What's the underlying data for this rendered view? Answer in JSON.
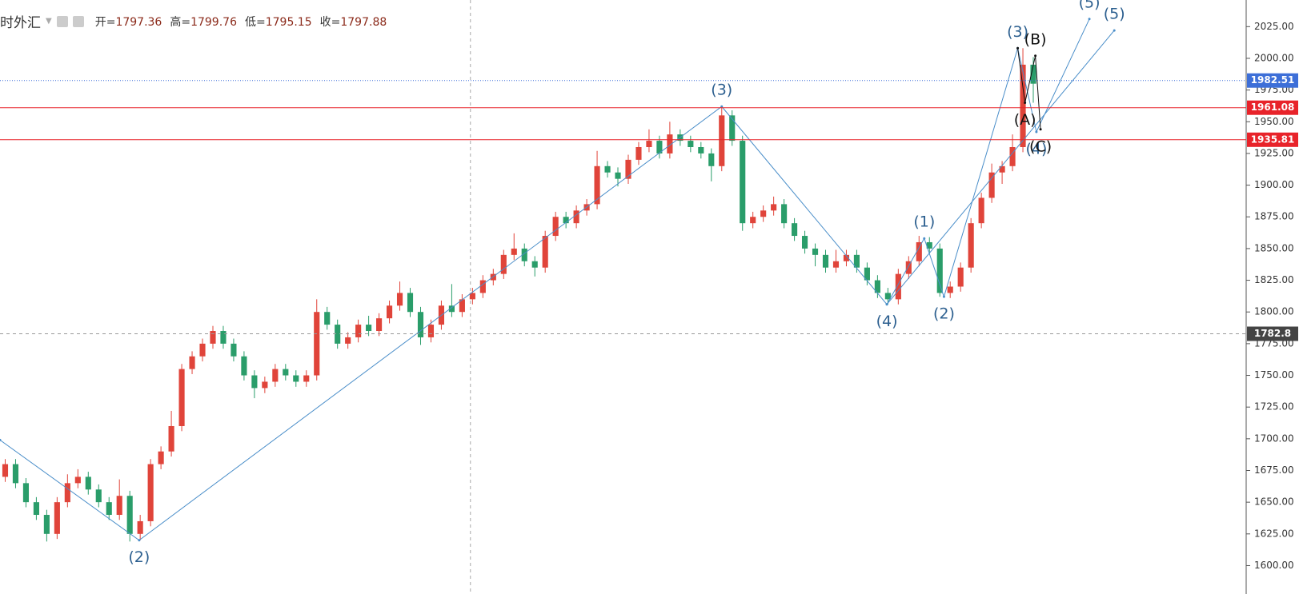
{
  "header": {
    "symbol": "时外汇",
    "items": [
      {
        "label": "开=",
        "value": "1797.36"
      },
      {
        "label": "高=",
        "value": "1799.76"
      },
      {
        "label": "低=",
        "value": "1795.15"
      },
      {
        "label": "收=",
        "value": "1797.88"
      }
    ]
  },
  "chart_data": {
    "type": "candlestick",
    "up_color": "#e0443a",
    "down_color": "#2a9d6a",
    "xlim": [
      0,
      120
    ],
    "ylim": [
      1577.6,
      2046.0
    ],
    "yticks": [
      {
        "value": 1600,
        "label": "1600.00"
      },
      {
        "value": 1625,
        "label": "1625.00"
      },
      {
        "value": 1650,
        "label": "1650.00"
      },
      {
        "value": 1675,
        "label": "1675.00"
      },
      {
        "value": 1700,
        "label": "1700.00"
      },
      {
        "value": 1725,
        "label": "1725.00"
      },
      {
        "value": 1750,
        "label": "1750.00"
      },
      {
        "value": 1775,
        "label": "1775.00"
      },
      {
        "value": 1800,
        "label": "1800.00"
      },
      {
        "value": 1825,
        "label": "1825.00"
      },
      {
        "value": 1850,
        "label": "1850.00"
      },
      {
        "value": 1875,
        "label": "1875.00"
      },
      {
        "value": 1900,
        "label": "1900.00"
      },
      {
        "value": 1925,
        "label": "1925.00"
      },
      {
        "value": 1950,
        "label": "1950.00"
      },
      {
        "value": 1975,
        "label": "1975.00"
      },
      {
        "value": 2000,
        "label": "2000.00"
      },
      {
        "value": 2025,
        "label": "2025.00"
      }
    ],
    "candles": [
      [
        1670,
        1684,
        1666,
        1680
      ],
      [
        1680,
        1684,
        1661,
        1665
      ],
      [
        1665,
        1669,
        1646,
        1650
      ],
      [
        1650,
        1654,
        1636,
        1640
      ],
      [
        1640,
        1644,
        1619,
        1625
      ],
      [
        1625,
        1654,
        1621,
        1650
      ],
      [
        1650,
        1672,
        1646,
        1665
      ],
      [
        1665,
        1676,
        1661,
        1670
      ],
      [
        1670,
        1674,
        1656,
        1660
      ],
      [
        1660,
        1664,
        1646,
        1650
      ],
      [
        1650,
        1654,
        1636,
        1640
      ],
      [
        1640,
        1668,
        1636,
        1655
      ],
      [
        1655,
        1659,
        1619,
        1625
      ],
      [
        1625,
        1640,
        1620,
        1635
      ],
      [
        1635,
        1684,
        1631,
        1680
      ],
      [
        1680,
        1694,
        1676,
        1690
      ],
      [
        1690,
        1722,
        1686,
        1710
      ],
      [
        1710,
        1759,
        1706,
        1755
      ],
      [
        1755,
        1769,
        1751,
        1765
      ],
      [
        1765,
        1779,
        1761,
        1775
      ],
      [
        1775,
        1789,
        1771,
        1785
      ],
      [
        1785,
        1789,
        1771,
        1775
      ],
      [
        1775,
        1779,
        1761,
        1765
      ],
      [
        1765,
        1769,
        1746,
        1750
      ],
      [
        1750,
        1754,
        1732,
        1740
      ],
      [
        1740,
        1749,
        1736,
        1745
      ],
      [
        1745,
        1759,
        1741,
        1755
      ],
      [
        1755,
        1759,
        1746,
        1750
      ],
      [
        1750,
        1754,
        1741,
        1745
      ],
      [
        1745,
        1754,
        1741,
        1750
      ],
      [
        1750,
        1810,
        1746,
        1800
      ],
      [
        1800,
        1804,
        1786,
        1790
      ],
      [
        1790,
        1794,
        1771,
        1775
      ],
      [
        1775,
        1784,
        1771,
        1780
      ],
      [
        1780,
        1794,
        1776,
        1790
      ],
      [
        1790,
        1797,
        1781,
        1785
      ],
      [
        1785,
        1799,
        1781,
        1795
      ],
      [
        1795,
        1809,
        1791,
        1805
      ],
      [
        1805,
        1824,
        1801,
        1815
      ],
      [
        1815,
        1819,
        1796,
        1800
      ],
      [
        1800,
        1804,
        1774,
        1780
      ],
      [
        1780,
        1794,
        1776,
        1790
      ],
      [
        1790,
        1809,
        1786,
        1805
      ],
      [
        1805,
        1822,
        1796,
        1800
      ],
      [
        1800,
        1814,
        1796,
        1810
      ],
      [
        1810,
        1819,
        1806,
        1815
      ],
      [
        1815,
        1829,
        1811,
        1825
      ],
      [
        1825,
        1834,
        1821,
        1830
      ],
      [
        1830,
        1849,
        1826,
        1845
      ],
      [
        1845,
        1862,
        1841,
        1850
      ],
      [
        1850,
        1854,
        1836,
        1840
      ],
      [
        1840,
        1844,
        1828,
        1835
      ],
      [
        1835,
        1864,
        1831,
        1860
      ],
      [
        1860,
        1879,
        1856,
        1875
      ],
      [
        1875,
        1879,
        1866,
        1870
      ],
      [
        1870,
        1884,
        1866,
        1880
      ],
      [
        1880,
        1889,
        1876,
        1885
      ],
      [
        1885,
        1927,
        1881,
        1915
      ],
      [
        1915,
        1919,
        1906,
        1910
      ],
      [
        1910,
        1914,
        1899,
        1905
      ],
      [
        1905,
        1924,
        1901,
        1920
      ],
      [
        1920,
        1934,
        1916,
        1930
      ],
      [
        1930,
        1944,
        1926,
        1935
      ],
      [
        1935,
        1939,
        1921,
        1925
      ],
      [
        1925,
        1950,
        1921,
        1940
      ],
      [
        1940,
        1944,
        1931,
        1935
      ],
      [
        1935,
        1939,
        1926,
        1930
      ],
      [
        1930,
        1934,
        1921,
        1925
      ],
      [
        1925,
        1929,
        1903,
        1915
      ],
      [
        1915,
        1962,
        1911,
        1955
      ],
      [
        1955,
        1959,
        1931,
        1935
      ],
      [
        1935,
        1939,
        1864,
        1870
      ],
      [
        1870,
        1879,
        1866,
        1875
      ],
      [
        1875,
        1884,
        1871,
        1880
      ],
      [
        1880,
        1891,
        1876,
        1885
      ],
      [
        1885,
        1889,
        1866,
        1870
      ],
      [
        1870,
        1874,
        1856,
        1860
      ],
      [
        1860,
        1864,
        1846,
        1850
      ],
      [
        1850,
        1854,
        1836,
        1845
      ],
      [
        1845,
        1849,
        1831,
        1835
      ],
      [
        1835,
        1849,
        1831,
        1840
      ],
      [
        1840,
        1849,
        1836,
        1845
      ],
      [
        1845,
        1849,
        1831,
        1835
      ],
      [
        1835,
        1839,
        1821,
        1825
      ],
      [
        1825,
        1829,
        1811,
        1815
      ],
      [
        1815,
        1819,
        1806,
        1810
      ],
      [
        1810,
        1834,
        1806,
        1830
      ],
      [
        1830,
        1844,
        1826,
        1840
      ],
      [
        1840,
        1860,
        1836,
        1855
      ],
      [
        1855,
        1859,
        1846,
        1850
      ],
      [
        1850,
        1854,
        1812,
        1815
      ],
      [
        1815,
        1824,
        1811,
        1820
      ],
      [
        1820,
        1839,
        1816,
        1835
      ],
      [
        1835,
        1874,
        1831,
        1870
      ],
      [
        1870,
        1894,
        1866,
        1890
      ],
      [
        1890,
        1917,
        1886,
        1910
      ],
      [
        1910,
        1919,
        1901,
        1915
      ],
      [
        1915,
        1940,
        1911,
        1930
      ],
      [
        1930,
        2008,
        1926,
        1995
      ],
      [
        1995,
        2001,
        1965,
        1980
      ]
    ],
    "waves": [
      {
        "color": "#4a8ec9",
        "points": [
          [
            0,
            1699
          ],
          [
            13.4,
            1620
          ],
          [
            69.5,
            1962
          ],
          [
            85.4,
            1806
          ],
          [
            89.0,
            1858
          ],
          [
            90.9,
            1812
          ],
          [
            98.0,
            2008
          ],
          [
            99.8,
            1942
          ],
          [
            104.9,
            2031
          ]
        ],
        "labels": [
          null,
          "(2)",
          "(3)",
          "(4)",
          "(1)",
          "(2)",
          "(3)",
          "(4)",
          "(5)"
        ]
      },
      {
        "color": "#4a8ec9",
        "points": [
          [
            85.4,
            1806
          ],
          [
            107.3,
            2022
          ]
        ],
        "labels": [
          null,
          "(5)"
        ]
      },
      {
        "color": "#111111",
        "points": [
          [
            98.0,
            2008
          ],
          [
            98.7,
            1965
          ],
          [
            99.7,
            2002
          ],
          [
            100.2,
            1944
          ]
        ],
        "labels": [
          null,
          "(A)",
          "(B)",
          "(C)"
        ]
      }
    ],
    "price_lines": [
      {
        "value": 1982.51,
        "color": "#3d6fd8",
        "style": "dotted"
      },
      {
        "value": 1961.08,
        "color": "#e8232a",
        "style": "solid"
      },
      {
        "value": 1935.81,
        "color": "#e8232a",
        "style": "solid"
      },
      {
        "value": 1782.8,
        "color": "#999999",
        "style": "dashed",
        "label_color": "#444444"
      }
    ],
    "crosshair_x": 45.3
  }
}
